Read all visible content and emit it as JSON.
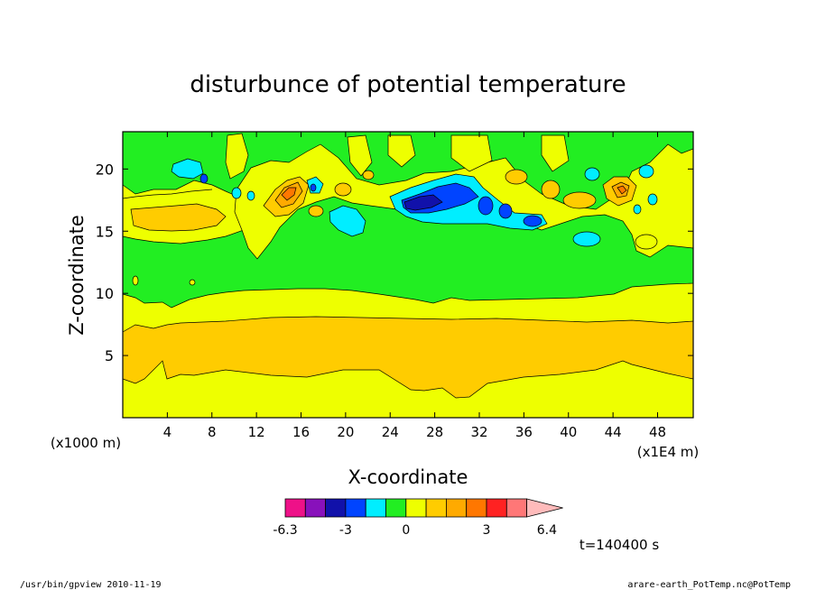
{
  "chart_data": {
    "type": "heatmap",
    "title": "disturbunce of potential temperature",
    "xlabel": "X-coordinate",
    "ylabel": "Z-coordinate",
    "x_unit": "(x1E4 m)",
    "y_unit": "(x1000 m)",
    "xlim": [
      0,
      51.2
    ],
    "ylim": [
      0,
      23
    ],
    "x_ticks": [
      4,
      8,
      12,
      16,
      20,
      24,
      28,
      32,
      36,
      40,
      44,
      48
    ],
    "y_ticks": [
      5,
      10,
      15,
      20
    ],
    "colorbar": {
      "levels": [
        -6.3,
        -5.4,
        -4.2,
        -3,
        -1.8,
        -0.6,
        0,
        0.6,
        1.2,
        1.8,
        3,
        4.2,
        5.4,
        6.4
      ],
      "labels": [
        "-6.3",
        "-3",
        "0",
        "3",
        "6.4"
      ],
      "label_values": [
        -6.3,
        -3,
        0,
        3,
        6.4
      ],
      "colors": [
        "#ee1188",
        "#8811bb",
        "#1111aa",
        "#0044ff",
        "#00eeff",
        "#22ee22",
        "#eeff00",
        "#ffcc00",
        "#ffaa00",
        "#ff7700",
        "#ff2222",
        "#ff7777",
        "#ffbbbb"
      ]
    },
    "regions": {
      "background": {
        "value": 0.3
      },
      "lower_warm_band": {
        "value": 0.9,
        "z_range": [
          2,
          8
        ]
      },
      "middle_band": {
        "value": 0.3,
        "z_range": [
          8,
          10
        ]
      },
      "upper_layer": {
        "value": -0.3,
        "z_range": [
          10,
          23
        ]
      },
      "cold_core": {
        "value": -5.0,
        "x": 27,
        "z": 17
      },
      "warm_cores": [
        {
          "value": 3.0,
          "x": 15,
          "z": 18.2
        },
        {
          "value": 3.0,
          "x": 44.5,
          "z": 18.2
        }
      ]
    }
  },
  "footer": {
    "time_label": "t=140400 s",
    "left_note": "/usr/bin/gpview   2010-11-19",
    "right_note": "arare-earth_PotTemp.nc@PotTemp"
  }
}
